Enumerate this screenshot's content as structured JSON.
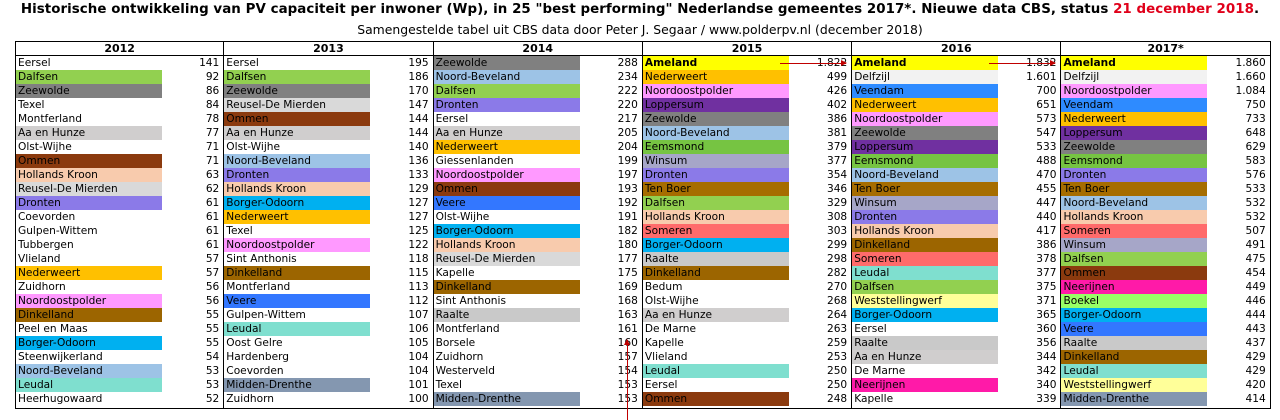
{
  "title_main": "Historische ontwikkeling van PV capaciteit per inwoner (Wp), in 25 \"best performing\" Nederlandse gemeentes 2017*. Nieuwe data CBS, status ",
  "title_date": "21 december 2018",
  "title_end": ".",
  "subtitle": "Samengestelde tabel uit CBS data door Peter J. Segaar / www.polderpv.nl (december 2018)",
  "colors": {
    "Ameland": "#ffff00",
    "Dalfsen": "#92d050",
    "Zeewolde": "#808080",
    "Dronten": "#8b7ae8",
    "Hollands Kroon": "#f8cbad",
    "Nederweert": "#ffc000",
    "Noordoostpolder": "#ff99ff",
    "Dinkelland": "#9c6500",
    "Borger-Odoorn": "#00b0f0",
    "Noord-Beveland": "#9dc3e6",
    "Leudal": "#7fdfcf",
    "Midden-Drenthe": "#8497b0",
    "Reusel-De Mierden": "#d9d9d9",
    "Aa en Hunze": "#d0cece",
    "Veere": "#3377ff",
    "Raalte": "#c9c9c9",
    "Loppersum": "#7030a0",
    "Emmsmond": "#76c442",
    "Winsum": "#a6a6c8",
    "Ten Boer": "#a66d00",
    "Someren": "#ff6b6b",
    "Veendam": "#2e8bff",
    "Weststellingwerf": "#ffff99",
    "Neerijnen": "#ff1aa8",
    "Delfzijl": "#f2f2f2",
    "Ommen": "#8b3a0e",
    "Boekel": "#99ff66",
    "Eemsmond": "#76c442"
  },
  "columns": [
    {
      "year": "2012",
      "rows": [
        {
          "name": "Eersel",
          "value": "141"
        },
        {
          "name": "Dalfsen",
          "value": "92"
        },
        {
          "name": "Zeewolde",
          "value": "86"
        },
        {
          "name": "Texel",
          "value": "84"
        },
        {
          "name": "Montferland",
          "value": "78"
        },
        {
          "name": "Aa en Hunze",
          "value": "77"
        },
        {
          "name": "Olst-Wijhe",
          "value": "71"
        },
        {
          "name": "Ommen",
          "value": "71"
        },
        {
          "name": "Hollands Kroon",
          "value": "63"
        },
        {
          "name": "Reusel-De Mierden",
          "value": "62"
        },
        {
          "name": "Dronten",
          "value": "61"
        },
        {
          "name": "Coevorden",
          "value": "61"
        },
        {
          "name": "Gulpen-Wittem",
          "value": "61"
        },
        {
          "name": "Tubbergen",
          "value": "61"
        },
        {
          "name": "Vlieland",
          "value": "57"
        },
        {
          "name": "Nederweert",
          "value": "57"
        },
        {
          "name": "Zuidhorn",
          "value": "56"
        },
        {
          "name": "Noordoostpolder",
          "value": "56"
        },
        {
          "name": "Dinkelland",
          "value": "55"
        },
        {
          "name": "Peel en Maas",
          "value": "55"
        },
        {
          "name": "Borger-Odoorn",
          "value": "55"
        },
        {
          "name": "Steenwijkerland",
          "value": "54"
        },
        {
          "name": "Noord-Beveland",
          "value": "53"
        },
        {
          "name": "Leudal",
          "value": "53"
        },
        {
          "name": "Heerhugowaard",
          "value": "52"
        }
      ]
    },
    {
      "year": "2013",
      "rows": [
        {
          "name": "Eersel",
          "value": "195"
        },
        {
          "name": "Dalfsen",
          "value": "186"
        },
        {
          "name": "Zeewolde",
          "value": "170"
        },
        {
          "name": "Reusel-De Mierden",
          "value": "147"
        },
        {
          "name": "Ommen",
          "value": "144"
        },
        {
          "name": "Aa en Hunze",
          "value": "144"
        },
        {
          "name": "Olst-Wijhe",
          "value": "140"
        },
        {
          "name": "Noord-Beveland",
          "value": "136"
        },
        {
          "name": "Dronten",
          "value": "133"
        },
        {
          "name": "Hollands Kroon",
          "value": "129"
        },
        {
          "name": "Borger-Odoorn",
          "value": "127"
        },
        {
          "name": "Nederweert",
          "value": "127"
        },
        {
          "name": "Texel",
          "value": "125"
        },
        {
          "name": "Noordoostpolder",
          "value": "122"
        },
        {
          "name": "Sint Anthonis",
          "value": "118"
        },
        {
          "name": "Dinkelland",
          "value": "115"
        },
        {
          "name": "Montferland",
          "value": "113"
        },
        {
          "name": "Veere",
          "value": "112"
        },
        {
          "name": "Gulpen-Wittem",
          "value": "107"
        },
        {
          "name": "Leudal",
          "value": "106"
        },
        {
          "name": "Oost Gelre",
          "value": "105"
        },
        {
          "name": "Hardenberg",
          "value": "104"
        },
        {
          "name": "Coevorden",
          "value": "104"
        },
        {
          "name": "Midden-Drenthe",
          "value": "101"
        },
        {
          "name": "Zuidhorn",
          "value": "100"
        }
      ]
    },
    {
      "year": "2014",
      "rows": [
        {
          "name": "Zeewolde",
          "value": "288"
        },
        {
          "name": "Noord-Beveland",
          "value": "234"
        },
        {
          "name": "Dalfsen",
          "value": "222"
        },
        {
          "name": "Dronten",
          "value": "220"
        },
        {
          "name": "Eersel",
          "value": "217"
        },
        {
          "name": "Aa en Hunze",
          "value": "205"
        },
        {
          "name": "Nederweert",
          "value": "204"
        },
        {
          "name": "Giessenlanden",
          "value": "199"
        },
        {
          "name": "Noordoostpolder",
          "value": "197"
        },
        {
          "name": "Ommen",
          "value": "193"
        },
        {
          "name": "Veere",
          "value": "192"
        },
        {
          "name": "Olst-Wijhe",
          "value": "191"
        },
        {
          "name": "Borger-Odoorn",
          "value": "182"
        },
        {
          "name": "Hollands Kroon",
          "value": "180"
        },
        {
          "name": "Reusel-De Mierden",
          "value": "177"
        },
        {
          "name": "Kapelle",
          "value": "175"
        },
        {
          "name": "Dinkelland",
          "value": "169"
        },
        {
          "name": "Sint Anthonis",
          "value": "168"
        },
        {
          "name": "Raalte",
          "value": "163"
        },
        {
          "name": "Montferland",
          "value": "161"
        },
        {
          "name": "Borsele",
          "value": "160"
        },
        {
          "name": "Zuidhorn",
          "value": "157"
        },
        {
          "name": "Westerveld",
          "value": "154"
        },
        {
          "name": "Texel",
          "value": "153"
        },
        {
          "name": "Midden-Drenthe",
          "value": "153"
        }
      ]
    },
    {
      "year": "2015",
      "rows": [
        {
          "name": "Ameland",
          "value": "1.822",
          "top": true
        },
        {
          "name": "Nederweert",
          "value": "499"
        },
        {
          "name": "Noordoostpolder",
          "value": "426"
        },
        {
          "name": "Loppersum",
          "value": "402"
        },
        {
          "name": "Zeewolde",
          "value": "386"
        },
        {
          "name": "Noord-Beveland",
          "value": "381"
        },
        {
          "name": "Eemsmond",
          "value": "379"
        },
        {
          "name": "Winsum",
          "value": "377"
        },
        {
          "name": "Dronten",
          "value": "354"
        },
        {
          "name": "Ten Boer",
          "value": "346"
        },
        {
          "name": "Dalfsen",
          "value": "329"
        },
        {
          "name": "Hollands Kroon",
          "value": "308"
        },
        {
          "name": "Someren",
          "value": "303"
        },
        {
          "name": "Borger-Odoorn",
          "value": "299"
        },
        {
          "name": "Raalte",
          "value": "298"
        },
        {
          "name": "Dinkelland",
          "value": "282"
        },
        {
          "name": "Bedum",
          "value": "270"
        },
        {
          "name": "Olst-Wijhe",
          "value": "268"
        },
        {
          "name": "Aa en Hunze",
          "value": "264"
        },
        {
          "name": "De Marne",
          "value": "263"
        },
        {
          "name": "Kapelle",
          "value": "259"
        },
        {
          "name": "Vlieland",
          "value": "253"
        },
        {
          "name": "Leudal",
          "value": "250"
        },
        {
          "name": "Eersel",
          "value": "250"
        },
        {
          "name": "Ommen",
          "value": "248"
        }
      ]
    },
    {
      "year": "2016",
      "rows": [
        {
          "name": "Ameland",
          "value": "1.832",
          "top": true
        },
        {
          "name": "Delfzijl",
          "value": "1.601"
        },
        {
          "name": "Veendam",
          "value": "700"
        },
        {
          "name": "Nederweert",
          "value": "651"
        },
        {
          "name": "Noordoostpolder",
          "value": "573"
        },
        {
          "name": "Zeewolde",
          "value": "547"
        },
        {
          "name": "Loppersum",
          "value": "533"
        },
        {
          "name": "Eemsmond",
          "value": "488"
        },
        {
          "name": "Noord-Beveland",
          "value": "470"
        },
        {
          "name": "Ten Boer",
          "value": "455"
        },
        {
          "name": "Winsum",
          "value": "447"
        },
        {
          "name": "Dronten",
          "value": "440"
        },
        {
          "name": "Hollands Kroon",
          "value": "417"
        },
        {
          "name": "Dinkelland",
          "value": "386"
        },
        {
          "name": "Someren",
          "value": "378"
        },
        {
          "name": "Leudal",
          "value": "377"
        },
        {
          "name": "Dalfsen",
          "value": "375"
        },
        {
          "name": "Weststellingwerf",
          "value": "371"
        },
        {
          "name": "Borger-Odoorn",
          "value": "365"
        },
        {
          "name": "Eersel",
          "value": "360"
        },
        {
          "name": "Raalte",
          "value": "356"
        },
        {
          "name": "Aa en Hunze",
          "value": "344"
        },
        {
          "name": "De Marne",
          "value": "342"
        },
        {
          "name": "Neerijnen",
          "value": "340"
        },
        {
          "name": "Kapelle",
          "value": "339"
        }
      ]
    },
    {
      "year": "2017*",
      "rows": [
        {
          "name": "Ameland",
          "value": "1.860",
          "top": true
        },
        {
          "name": "Delfzijl",
          "value": "1.660"
        },
        {
          "name": "Noordoostpolder",
          "value": "1.084"
        },
        {
          "name": "Veendam",
          "value": "750"
        },
        {
          "name": "Nederweert",
          "value": "733"
        },
        {
          "name": "Loppersum",
          "value": "648"
        },
        {
          "name": "Zeewolde",
          "value": "629"
        },
        {
          "name": "Eemsmond",
          "value": "583"
        },
        {
          "name": "Dronten",
          "value": "576"
        },
        {
          "name": "Ten Boer",
          "value": "533"
        },
        {
          "name": "Noord-Beveland",
          "value": "532"
        },
        {
          "name": "Hollands Kroon",
          "value": "532"
        },
        {
          "name": "Someren",
          "value": "507"
        },
        {
          "name": "Winsum",
          "value": "491"
        },
        {
          "name": "Dalfsen",
          "value": "475"
        },
        {
          "name": "Ommen",
          "value": "454"
        },
        {
          "name": "Neerijnen",
          "value": "449"
        },
        {
          "name": "Boekel",
          "value": "446"
        },
        {
          "name": "Borger-Odoorn",
          "value": "444"
        },
        {
          "name": "Veere",
          "value": "443"
        },
        {
          "name": "Raalte",
          "value": "437"
        },
        {
          "name": "Dinkelland",
          "value": "429"
        },
        {
          "name": "Leudal",
          "value": "429"
        },
        {
          "name": "Weststellingwerf",
          "value": "420"
        },
        {
          "name": "Midden-Drenthe",
          "value": "414"
        }
      ]
    }
  ]
}
